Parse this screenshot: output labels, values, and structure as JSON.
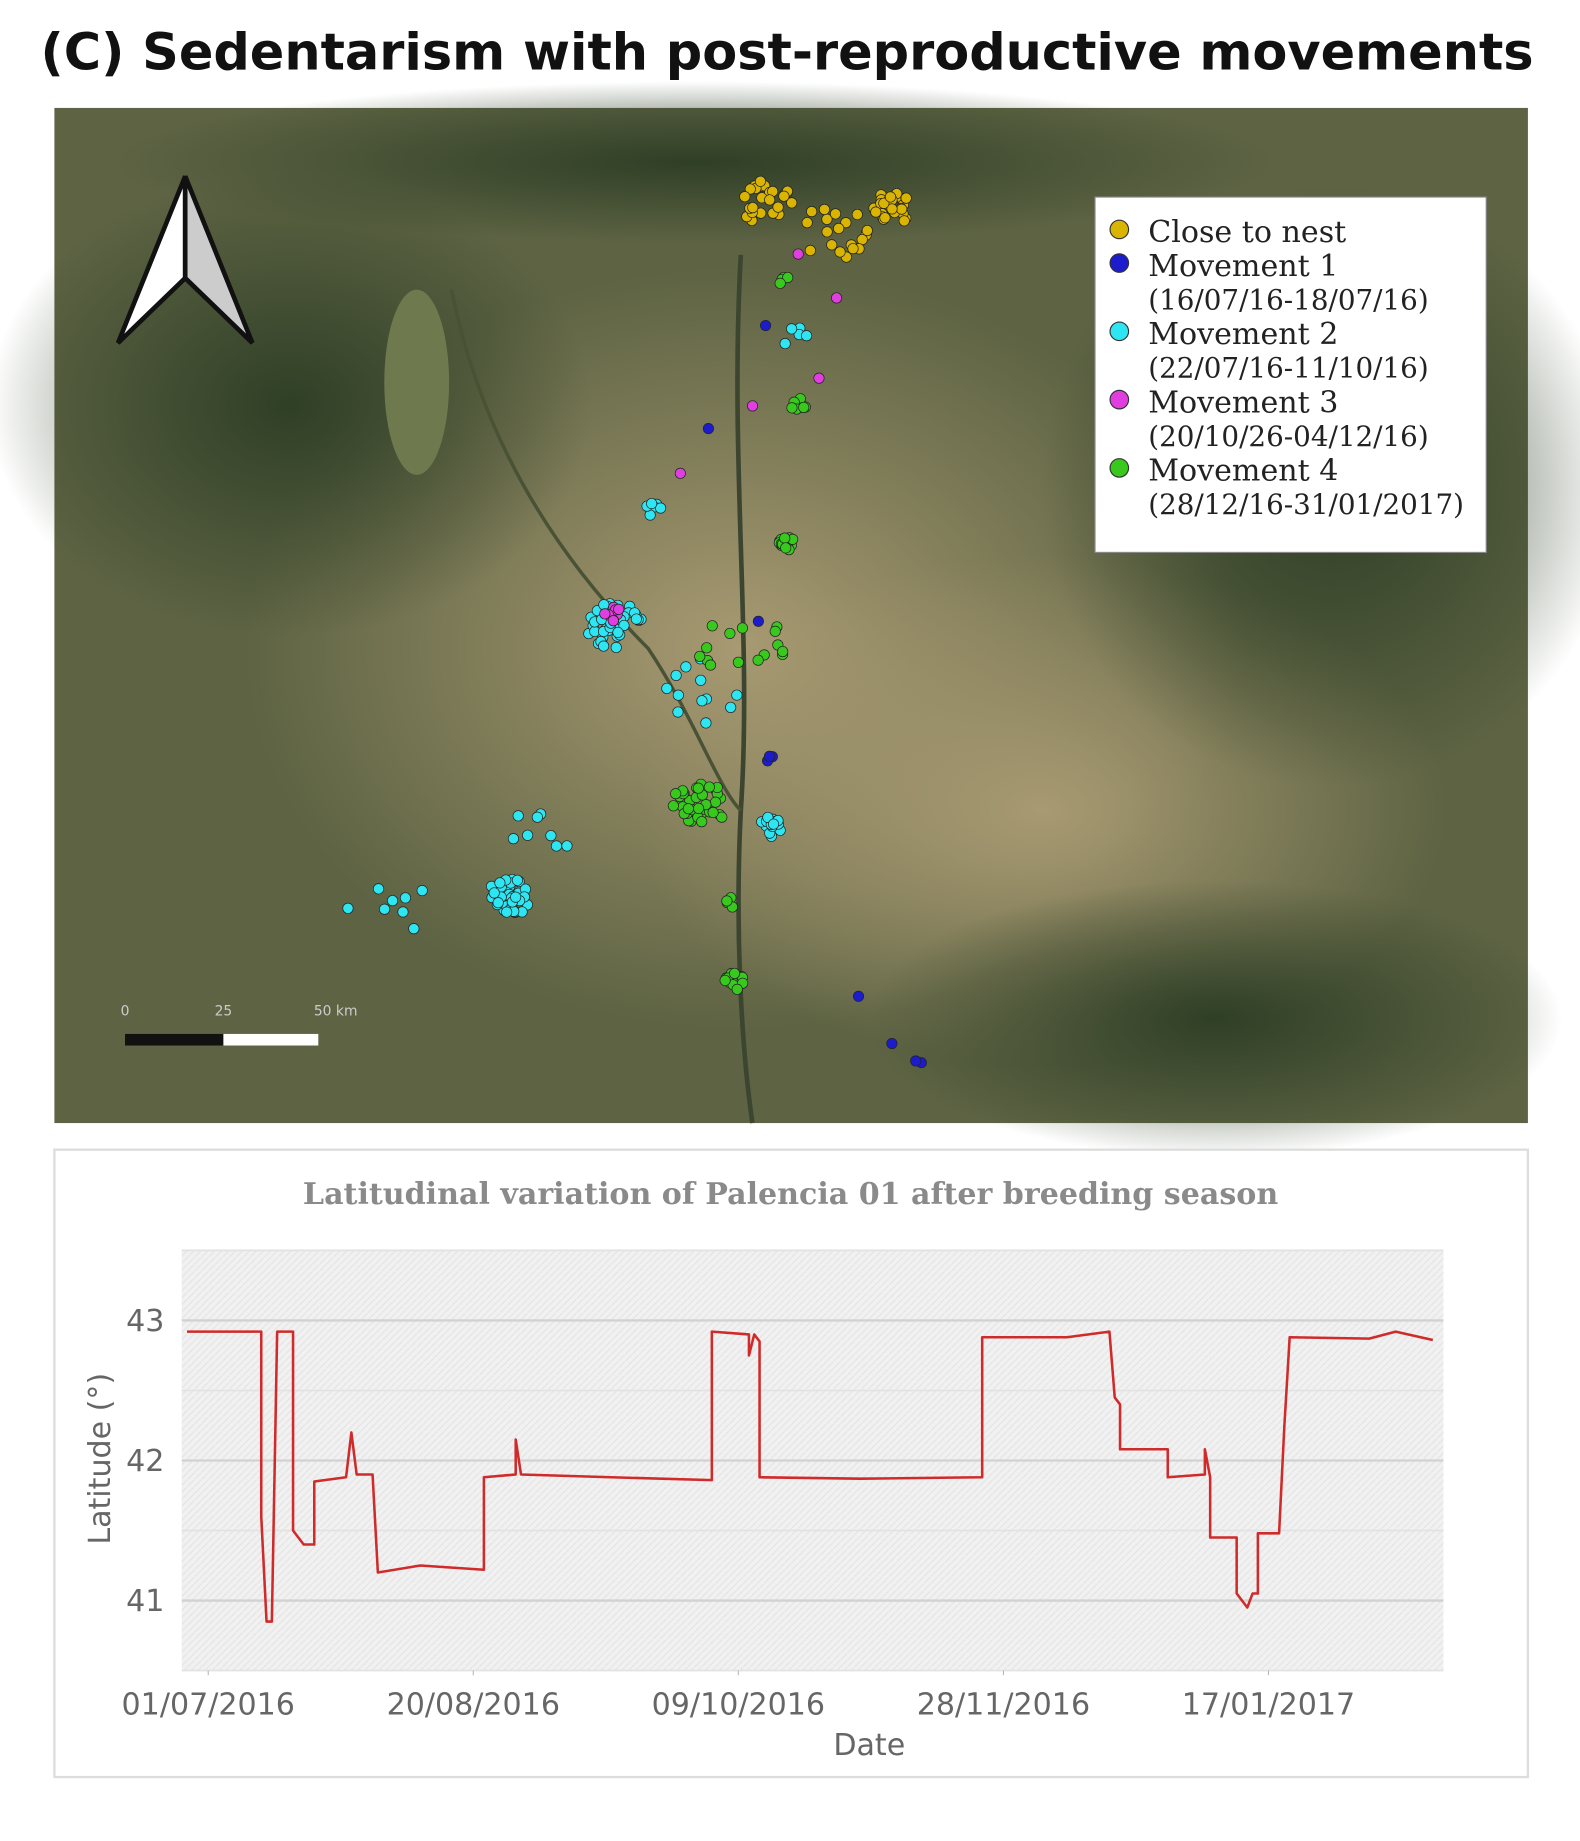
{
  "title": "(C) Sedentarism with post-reproductive movements",
  "map": {
    "legend": [
      {
        "name": "Close to nest",
        "color": "#d9b400"
      },
      {
        "name": "Movement 1",
        "dates": "(16/07/16-18/07/16)",
        "color": "#1c1ccc"
      },
      {
        "name": "Movement 2",
        "dates": "(22/07/16-11/10/16)",
        "color": "#2ee6f2"
      },
      {
        "name": "Movement 3",
        "dates": "(20/10/26-04/12/16)",
        "color": "#e03ee0"
      },
      {
        "name": "Movement 4",
        "dates": "(28/12/16-31/01/2017)",
        "color": "#38c81e"
      }
    ],
    "scale_labels": [
      "0",
      "25",
      "50 km"
    ]
  },
  "chart_data": {
    "type": "line",
    "title": "Latitudinal variation of Palencia 01 after breeding season",
    "x_label": "Date",
    "y_label": "Latitude (°)",
    "color": "#d02a2a",
    "x": [
      "27/06/2016",
      "11/07/2016",
      "11/07/2016",
      "12/07/2016",
      "13/07/2016",
      "14/07/2016",
      "17/07/2016",
      "17/07/2016",
      "19/07/2016",
      "21/07/2016",
      "21/07/2016",
      "27/07/2016",
      "28/07/2016",
      "29/07/2016",
      "01/08/2016",
      "02/08/2016",
      "10/08/2016",
      "22/08/2016",
      "22/08/2016",
      "28/08/2016",
      "28/08/2016",
      "29/08/2016",
      "15/09/2016",
      "04/10/2016",
      "04/10/2016",
      "11/10/2016",
      "11/10/2016",
      "12/10/2016",
      "13/10/2016",
      "13/10/2016",
      "01/11/2016",
      "24/11/2016",
      "24/11/2016",
      "10/12/2016",
      "18/12/2016",
      "19/12/2016",
      "20/12/2016",
      "20/12/2016",
      "29/12/2016",
      "29/12/2016",
      "05/01/2017",
      "05/01/2017",
      "06/01/2017",
      "06/01/2017",
      "11/01/2017",
      "11/01/2017",
      "13/01/2017",
      "14/01/2017",
      "15/01/2017",
      "15/01/2017",
      "19/01/2017",
      "20/01/2017",
      "21/01/2017",
      "05/02/2017",
      "10/02/2017",
      "17/02/2017"
    ],
    "values": [
      42.92,
      42.92,
      41.6,
      40.85,
      40.85,
      42.92,
      42.92,
      41.5,
      41.4,
      41.4,
      41.85,
      41.88,
      42.2,
      41.9,
      41.9,
      41.2,
      41.25,
      41.22,
      41.88,
      41.9,
      42.15,
      41.9,
      41.88,
      41.86,
      42.92,
      42.9,
      42.75,
      42.9,
      42.85,
      41.88,
      41.87,
      41.88,
      42.88,
      42.88,
      42.92,
      42.45,
      42.4,
      42.08,
      42.08,
      41.88,
      41.9,
      42.08,
      41.88,
      41.45,
      41.45,
      41.05,
      40.95,
      41.05,
      41.05,
      41.48,
      41.48,
      42.25,
      42.88,
      42.87,
      42.92,
      42.86
    ],
    "xlim": [
      "26/06/2016",
      "19/02/2017"
    ],
    "xticks": [
      "01/07/2016",
      "20/08/2016",
      "09/10/2016",
      "28/11/2016",
      "17/01/2017"
    ],
    "ylim": [
      40.5,
      43.5
    ],
    "yticks": [
      41,
      42,
      43
    ],
    "minor_yticks": [
      40.5,
      41.5,
      42.5,
      43.5
    ],
    "grid": true
  }
}
